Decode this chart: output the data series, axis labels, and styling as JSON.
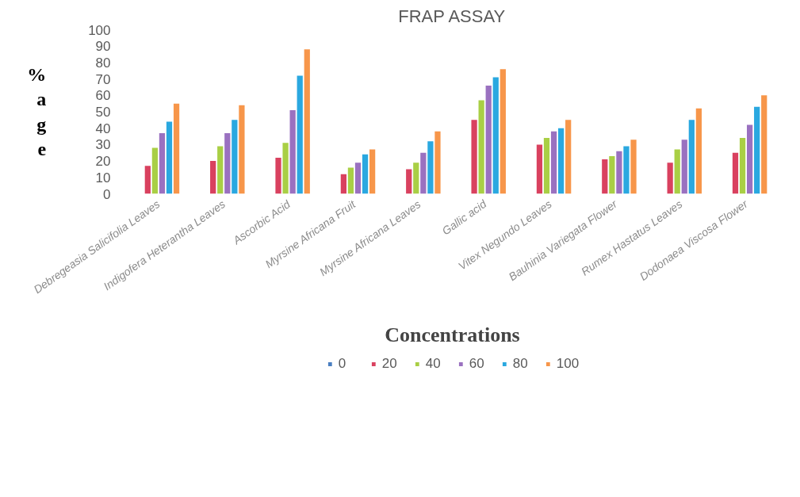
{
  "chart_data": {
    "type": "bar",
    "title": "FRAP ASSAY",
    "xlabel": "Concentrations",
    "ylabel": "%age",
    "categories": [
      "Debregeasia Salicifolia Leaves",
      "Indigofera Heterantha Leaves",
      "Ascorbic Acid",
      "Myrsine Africana Fruit",
      "Myrsine Africana Leaves",
      "Gallic acid",
      "Vitex Negundo Leaves",
      "Bauhinia Variegata Flower",
      "Rumex Hastatus Leaves",
      "Dodonaea Viscosa Flower"
    ],
    "series": [
      {
        "name": "0",
        "color": "#4a7fc1",
        "values": [
          0,
          0,
          0,
          0,
          0,
          0,
          0,
          0,
          0,
          0
        ]
      },
      {
        "name": "20",
        "color": "#d9415f",
        "values": [
          17,
          20,
          22,
          12,
          15,
          45,
          30,
          21,
          19,
          25
        ]
      },
      {
        "name": "40",
        "color": "#a9cf45",
        "values": [
          28,
          29,
          31,
          16,
          19,
          57,
          34,
          23,
          27,
          34
        ]
      },
      {
        "name": "60",
        "color": "#9a71c0",
        "values": [
          37,
          37,
          51,
          19,
          25,
          66,
          38,
          26,
          33,
          42
        ]
      },
      {
        "name": "80",
        "color": "#2aa8e0",
        "values": [
          44,
          45,
          72,
          24,
          32,
          71,
          40,
          29,
          45,
          53
        ]
      },
      {
        "name": "100",
        "color": "#f7964a",
        "values": [
          55,
          54,
          88,
          27,
          38,
          76,
          45,
          33,
          52,
          60
        ]
      }
    ],
    "ylim": [
      0,
      100
    ],
    "yticks": [
      0,
      10,
      20,
      30,
      40,
      50,
      60,
      70,
      80,
      90,
      100
    ],
    "grid": false,
    "legend": "bottom"
  }
}
